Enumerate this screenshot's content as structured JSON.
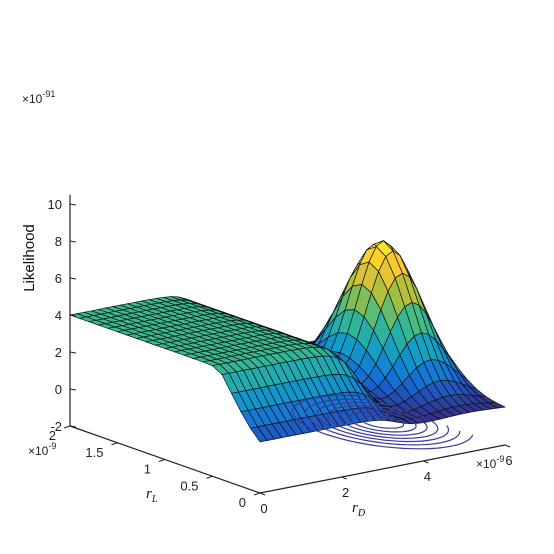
{
  "chart_data": {
    "type": "surface",
    "title": "",
    "zlabel": "Likelihood",
    "xlabel_base": "r",
    "xlabel_sub": "D",
    "ylabel_base": "r",
    "ylabel_sub": "L",
    "x_ticks": [
      "0",
      "2",
      "4",
      "6"
    ],
    "x_tick_values": [
      0,
      2,
      4,
      6
    ],
    "x_multiplier": "×10",
    "x_multiplier_exp": "-9",
    "y_ticks": [
      "0",
      "0.5",
      "1",
      "1.5",
      "2"
    ],
    "y_tick_values": [
      0,
      0.5,
      1,
      1.5,
      2
    ],
    "y_multiplier": "×10",
    "y_multiplier_exp": "-9",
    "z_ticks": [
      "-2",
      "0",
      "2",
      "4",
      "6",
      "8",
      "10"
    ],
    "z_tick_values": [
      -2,
      0,
      2,
      4,
      6,
      8,
      10
    ],
    "z_multiplier": "×10",
    "z_multiplier_exp": "-91",
    "xlim": [
      0,
      6
    ],
    "ylim": [
      0,
      2
    ],
    "zlim": [
      -2,
      10
    ],
    "peak": {
      "x": 5.1,
      "y": 0.9,
      "z": 7.8
    },
    "plateau_level": 4,
    "colormap": "parula",
    "contour_projection": true
  }
}
